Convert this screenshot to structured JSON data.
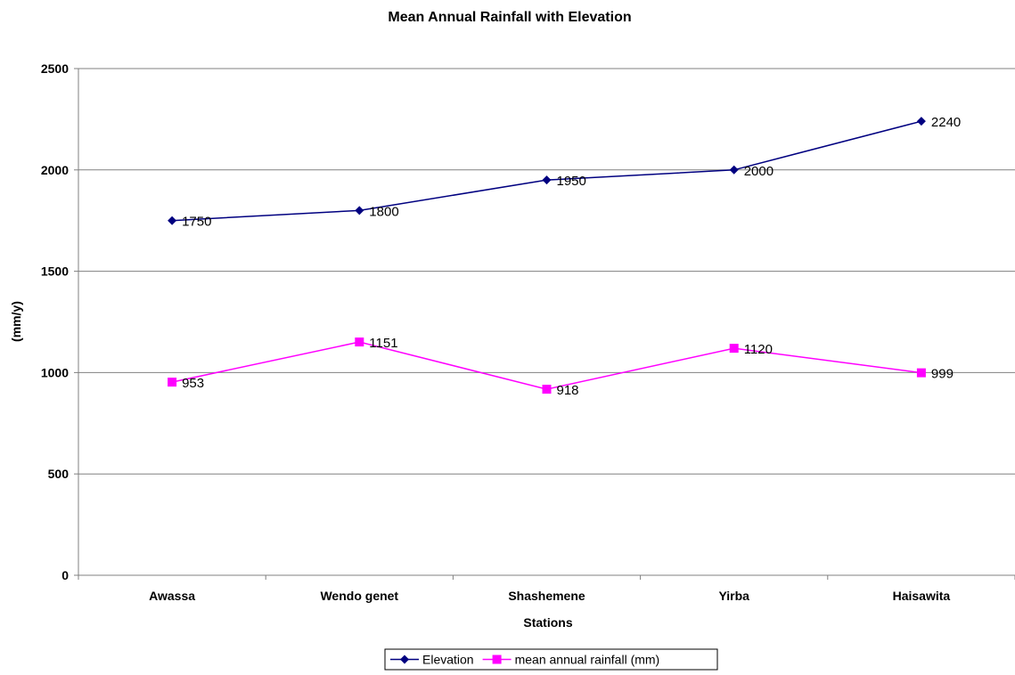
{
  "chart_data": {
    "type": "line",
    "title": "Mean Annual Rainfall with Elevation",
    "xlabel": "Stations",
    "ylabel": "(mm/y)",
    "categories": [
      "Awassa",
      "Wendo genet",
      "Shashemene",
      "Yirba",
      "Haisawita"
    ],
    "ylim": [
      0,
      2500
    ],
    "yticks": [
      0,
      500,
      1000,
      1500,
      2000,
      2500
    ],
    "grid": true,
    "legend_position": "bottom",
    "series": [
      {
        "name": "Elevation",
        "values": [
          1750,
          1800,
          1950,
          2000,
          2240
        ],
        "color": "#000080",
        "marker": "diamond"
      },
      {
        "name": "mean annual rainfall (mm)",
        "values": [
          953,
          1151,
          918,
          1120,
          999
        ],
        "color": "#ff00ff",
        "marker": "square"
      }
    ]
  }
}
